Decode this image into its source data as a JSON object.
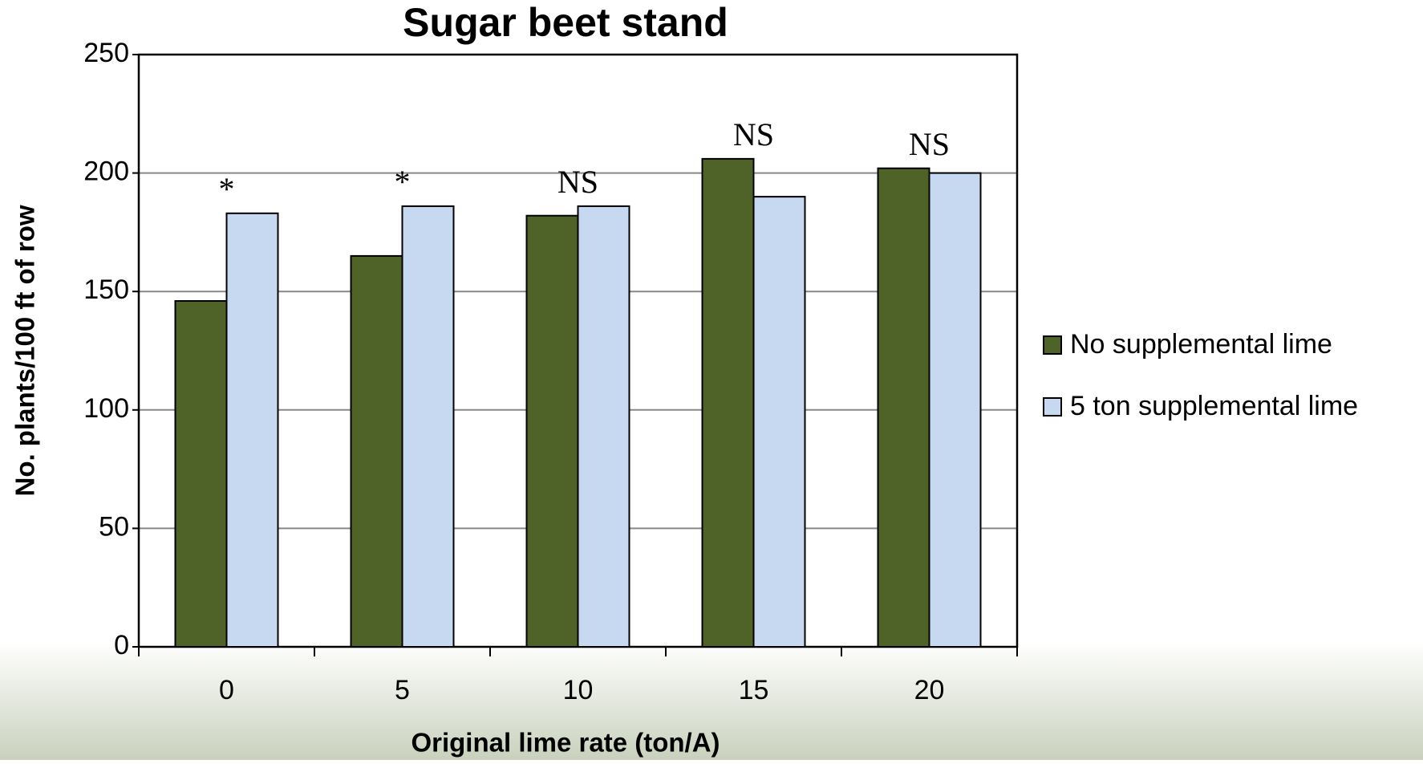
{
  "chart_data": {
    "type": "bar",
    "title": "Sugar beet stand",
    "x_label": "Original  lime rate (ton/A)",
    "y_label": "No. plants/100 ft of row",
    "categories": [
      "0",
      "5",
      "10",
      "15",
      "20"
    ],
    "series": [
      {
        "name": "No supplemental lime",
        "color": "#4f6228",
        "values": [
          146,
          165,
          182,
          206,
          202
        ]
      },
      {
        "name": "5 ton supplemental lime",
        "color": "#c6d9f1",
        "values": [
          183,
          186,
          186,
          190,
          200
        ]
      }
    ],
    "annotations": [
      "*",
      "*",
      "NS",
      "NS",
      "NS"
    ],
    "ylim": [
      0,
      250
    ],
    "yticks": [
      0,
      50,
      100,
      150,
      200,
      250
    ],
    "grid": true,
    "legend": "right"
  }
}
